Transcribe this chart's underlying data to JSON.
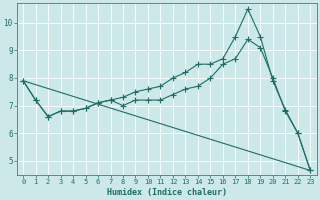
{
  "xlabel": "Humidex (Indice chaleur)",
  "bg_color": "#cce8e8",
  "line_color": "#1e6e65",
  "xlim": [
    -0.5,
    23.5
  ],
  "ylim": [
    4.5,
    10.7
  ],
  "yticks": [
    5,
    6,
    7,
    8,
    9,
    10
  ],
  "xticks": [
    0,
    1,
    2,
    3,
    4,
    5,
    6,
    7,
    8,
    9,
    10,
    11,
    12,
    13,
    14,
    15,
    16,
    17,
    18,
    19,
    20,
    21,
    22,
    23
  ],
  "line1_x": [
    0,
    1,
    2,
    3,
    4,
    5,
    6,
    7,
    8,
    9,
    10,
    11,
    12,
    13,
    14,
    15,
    16,
    17,
    18,
    19,
    20,
    21,
    22,
    23
  ],
  "line1_y": [
    7.9,
    7.2,
    6.6,
    6.8,
    6.8,
    6.9,
    7.1,
    7.2,
    7.3,
    7.5,
    7.6,
    7.7,
    8.0,
    8.2,
    8.5,
    8.5,
    8.7,
    9.5,
    10.5,
    9.5,
    7.9,
    6.85,
    6.0,
    4.65
  ],
  "line2_x": [
    0,
    1,
    2,
    3,
    4,
    5,
    6,
    7,
    8,
    9,
    10,
    11,
    12,
    13,
    14,
    15,
    16,
    17,
    18,
    19,
    20,
    21,
    22,
    23
  ],
  "line2_y": [
    7.9,
    7.2,
    6.6,
    6.8,
    6.8,
    6.9,
    7.1,
    7.2,
    7.0,
    7.2,
    7.2,
    7.2,
    7.4,
    7.6,
    7.7,
    8.0,
    8.5,
    8.7,
    9.4,
    9.1,
    8.0,
    6.8,
    6.0,
    4.65
  ],
  "line3_x": [
    0,
    23
  ],
  "line3_y": [
    7.9,
    4.65
  ],
  "grid_color": "#ffffff",
  "tick_color": "#1e6e65",
  "label_fontsize": 6.0,
  "tick_fontsize": 5.0,
  "marker": "+",
  "markersize": 4.0,
  "linewidth": 0.8
}
